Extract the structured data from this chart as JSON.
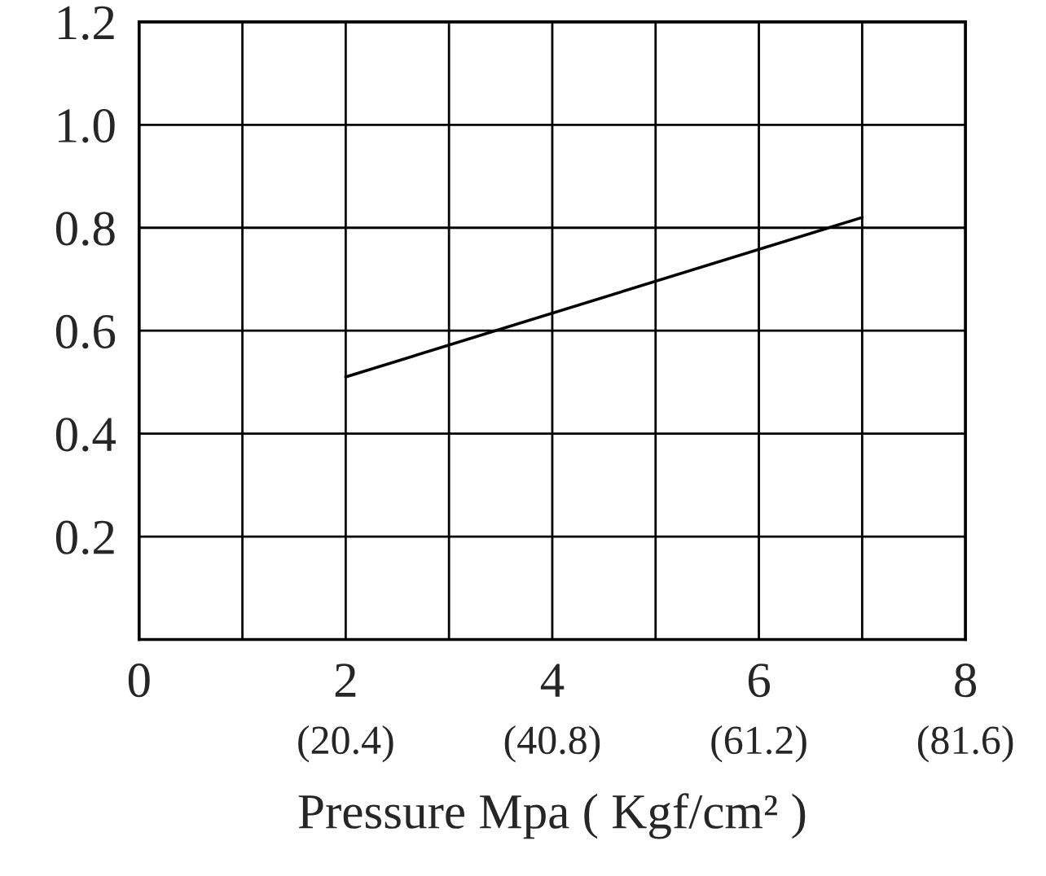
{
  "chart_data": {
    "type": "line",
    "xlabel": "Pressure Mpa ( Kgf/cm² )",
    "x": [
      2,
      7
    ],
    "series": [
      {
        "color": "#000000",
        "values": [
          0.51,
          0.82
        ]
      }
    ],
    "xlim": [
      0,
      8
    ],
    "ylim": [
      0,
      1.2
    ],
    "xticks": [
      0,
      {
        "value": 1,
        "label": null
      },
      2,
      {
        "value": 3,
        "label": null
      },
      4,
      {
        "value": 5,
        "label": null
      },
      6,
      {
        "value": 7,
        "label": null
      },
      8
    ],
    "x2lim": [
      0,
      81.6
    ],
    "x2ticks": [
      {
        "value": 20.4,
        "label": "(20.4)"
      },
      {
        "value": 40.8,
        "label": "(40.8)"
      },
      {
        "value": 61.2,
        "label": "(61.2)"
      },
      {
        "value": 81.6,
        "label": "(81.6)"
      }
    ],
    "yticks": [
      {
        "value": 0,
        "label": null
      },
      0.2,
      0.4,
      0.6,
      0.8,
      {
        "value": 1.0,
        "label": "1.0"
      },
      1.2
    ],
    "grid": true,
    "marker": "none",
    "line_style": "solid",
    "legend": false
  }
}
